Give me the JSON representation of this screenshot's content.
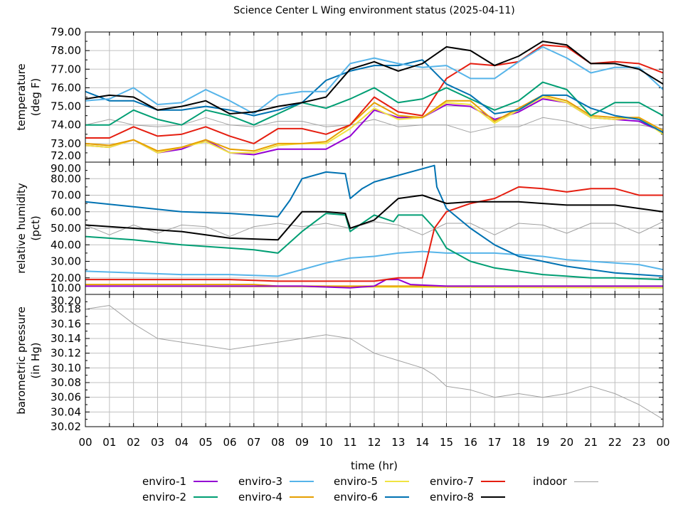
{
  "title": "Science Center L Wing environment status (2025-04-11)",
  "xlabel": "time (hr)",
  "legend": [
    {
      "name": "enviro-1",
      "color": "#9400d3"
    },
    {
      "name": "enviro-2",
      "color": "#009e73"
    },
    {
      "name": "enviro-3",
      "color": "#56b4e9"
    },
    {
      "name": "enviro-4",
      "color": "#e69f00"
    },
    {
      "name": "enviro-5",
      "color": "#f0e442"
    },
    {
      "name": "enviro-6",
      "color": "#0072b2"
    },
    {
      "name": "enviro-7",
      "color": "#e51e10"
    },
    {
      "name": "enviro-8",
      "color": "#000000"
    },
    {
      "name": "indoor",
      "color": "#a0a0a0"
    }
  ],
  "chart_data": [
    {
      "type": "line",
      "ylabel_lines": [
        "temperature",
        "(deg F)"
      ],
      "ylim": [
        72,
        79
      ],
      "yticks": [
        "72.00",
        "73.00",
        "74.00",
        "75.00",
        "76.00",
        "77.00",
        "78.00",
        "79.00"
      ],
      "xlim": [
        0,
        24
      ],
      "xticks": [
        "00",
        "01",
        "02",
        "03",
        "04",
        "05",
        "06",
        "07",
        "08",
        "09",
        "10",
        "11",
        "12",
        "13",
        "14",
        "15",
        "16",
        "17",
        "18",
        "19",
        "20",
        "21",
        "22",
        "23",
        "00"
      ],
      "grid": true,
      "x": [
        0,
        1,
        2,
        3,
        4,
        5,
        6,
        7,
        8,
        9,
        10,
        11,
        12,
        13,
        14,
        15,
        16,
        17,
        18,
        19,
        20,
        21,
        22,
        23,
        24
      ],
      "series": [
        {
          "name": "indoor",
          "values": [
            74.0,
            74.3,
            74.0,
            73.9,
            74.0,
            74.4,
            74.0,
            73.9,
            74.2,
            74.2,
            73.9,
            74.0,
            74.3,
            73.9,
            74.0,
            74.0,
            73.6,
            73.9,
            73.9,
            74.4,
            74.2,
            73.8,
            74.0,
            74.0,
            73.8
          ]
        },
        {
          "name": "enviro-1",
          "values": [
            72.9,
            72.8,
            73.2,
            72.5,
            72.7,
            73.2,
            72.5,
            72.4,
            72.7,
            72.7,
            72.7,
            73.4,
            74.8,
            74.4,
            74.4,
            75.1,
            75.0,
            74.3,
            74.7,
            75.4,
            75.2,
            74.4,
            74.3,
            74.2,
            73.6
          ]
        },
        {
          "name": "enviro-5",
          "values": [
            72.9,
            72.8,
            73.2,
            72.5,
            72.8,
            73.1,
            72.5,
            72.5,
            72.9,
            73.0,
            73.0,
            73.8,
            74.9,
            74.3,
            74.4,
            75.2,
            75.1,
            74.1,
            74.8,
            75.5,
            75.2,
            74.4,
            74.3,
            74.4,
            73.5
          ]
        },
        {
          "name": "enviro-4",
          "values": [
            73.0,
            72.9,
            73.2,
            72.6,
            72.8,
            73.2,
            72.7,
            72.6,
            73.0,
            73.0,
            73.1,
            74.0,
            75.2,
            74.5,
            74.4,
            75.3,
            75.3,
            74.2,
            74.9,
            75.6,
            75.3,
            74.5,
            74.4,
            74.4,
            73.7
          ]
        },
        {
          "name": "enviro-7",
          "values": [
            73.3,
            73.3,
            73.9,
            73.4,
            73.5,
            73.9,
            73.4,
            73.0,
            73.8,
            73.8,
            73.5,
            74.0,
            75.5,
            74.7,
            74.5,
            76.5,
            77.3,
            77.2,
            77.4,
            78.3,
            78.2,
            77.3,
            77.4,
            77.3,
            76.8
          ]
        },
        {
          "name": "enviro-2",
          "values": [
            74.0,
            74.0,
            74.8,
            74.3,
            74.0,
            74.8,
            74.5,
            74.0,
            74.6,
            75.2,
            74.9,
            75.4,
            76.0,
            75.2,
            75.4,
            76.0,
            75.4,
            74.8,
            75.3,
            76.3,
            75.9,
            74.5,
            75.2,
            75.2,
            74.5
          ]
        },
        {
          "name": "enviro-6",
          "values": [
            75.8,
            75.3,
            75.3,
            74.8,
            74.8,
            75.0,
            74.8,
            74.5,
            74.8,
            75.2,
            76.4,
            76.9,
            77.2,
            77.2,
            77.5,
            76.2,
            75.6,
            74.6,
            74.8,
            75.6,
            75.6,
            74.9,
            74.5,
            74.3,
            73.6
          ]
        },
        {
          "name": "enviro-3",
          "values": [
            75.3,
            75.4,
            76.0,
            75.1,
            75.2,
            75.9,
            75.3,
            74.6,
            75.6,
            75.8,
            75.8,
            77.3,
            77.6,
            77.3,
            77.1,
            77.2,
            76.5,
            76.5,
            77.4,
            78.2,
            77.6,
            76.8,
            77.1,
            77.1,
            75.9
          ]
        },
        {
          "name": "enviro-8",
          "values": [
            75.4,
            75.6,
            75.5,
            74.8,
            75.0,
            75.3,
            74.6,
            74.7,
            75.0,
            75.2,
            75.5,
            77.0,
            77.4,
            76.9,
            77.3,
            78.2,
            78.0,
            77.2,
            77.7,
            78.5,
            78.3,
            77.3,
            77.3,
            77.0,
            76.2
          ]
        }
      ]
    },
    {
      "type": "line",
      "ylabel_lines": [
        "relative humidity",
        "(pct)"
      ],
      "ylim": [
        10,
        90
      ],
      "yticks": [
        "10.00",
        "20.00",
        "30.00",
        "40.00",
        "50.00",
        "60.00",
        "70.00",
        "80.00",
        "90.00"
      ],
      "xlim": [
        0,
        24
      ],
      "grid": true,
      "series": [
        {
          "name": "indoor",
          "points": [
            [
              0,
              52
            ],
            [
              1,
              46
            ],
            [
              2,
              52
            ],
            [
              3,
              47
            ],
            [
              4,
              52
            ],
            [
              5,
              51
            ],
            [
              6,
              45
            ],
            [
              7,
              51
            ],
            [
              8,
              53
            ],
            [
              9,
              51
            ],
            [
              10,
              53
            ],
            [
              11,
              50
            ],
            [
              12,
              54
            ],
            [
              13,
              52
            ],
            [
              14,
              46
            ],
            [
              15,
              53
            ],
            [
              16,
              53
            ],
            [
              17,
              46
            ],
            [
              18,
              53
            ],
            [
              19,
              52
            ],
            [
              20,
              47
            ],
            [
              21,
              53
            ],
            [
              22,
              53
            ],
            [
              23,
              47
            ],
            [
              24,
              54
            ]
          ]
        },
        {
          "name": "enviro-5",
          "points": [
            [
              0,
              15
            ],
            [
              24,
              14
            ]
          ]
        },
        {
          "name": "enviro-4",
          "points": [
            [
              0,
              16
            ],
            [
              7,
              16
            ],
            [
              8,
              15
            ],
            [
              24,
              15
            ]
          ]
        },
        {
          "name": "enviro-1",
          "points": [
            [
              0,
              15
            ],
            [
              9,
              15
            ],
            [
              11,
              14
            ],
            [
              12,
              15
            ],
            [
              12.5,
              19
            ],
            [
              13,
              19
            ],
            [
              13.5,
              16
            ],
            [
              15,
              15
            ],
            [
              24,
              15
            ]
          ]
        },
        {
          "name": "enviro-3",
          "points": [
            [
              0,
              24
            ],
            [
              2,
              23
            ],
            [
              4,
              22
            ],
            [
              6,
              22
            ],
            [
              8,
              21
            ],
            [
              9,
              25
            ],
            [
              10,
              29
            ],
            [
              11,
              32
            ],
            [
              12,
              33
            ],
            [
              13,
              35
            ],
            [
              14,
              36
            ],
            [
              15,
              35
            ],
            [
              16,
              35
            ],
            [
              17,
              35
            ],
            [
              18,
              34
            ],
            [
              19,
              33
            ],
            [
              20,
              31
            ],
            [
              21,
              30
            ],
            [
              22,
              29
            ],
            [
              23,
              28
            ],
            [
              24,
              25
            ]
          ]
        },
        {
          "name": "enviro-2",
          "points": [
            [
              0,
              45
            ],
            [
              2,
              43
            ],
            [
              4,
              40
            ],
            [
              6,
              38
            ],
            [
              7,
              37
            ],
            [
              8,
              35
            ],
            [
              9,
              48
            ],
            [
              10,
              59
            ],
            [
              10.8,
              58
            ],
            [
              11,
              48
            ],
            [
              12,
              58
            ],
            [
              12.8,
              54
            ],
            [
              13,
              58
            ],
            [
              14,
              58
            ],
            [
              14.5,
              50
            ],
            [
              15,
              38
            ],
            [
              16,
              30
            ],
            [
              17,
              26
            ],
            [
              18,
              24
            ],
            [
              19,
              22
            ],
            [
              20,
              21
            ],
            [
              21,
              20
            ],
            [
              22,
              20
            ],
            [
              24,
              19
            ]
          ]
        },
        {
          "name": "enviro-7",
          "points": [
            [
              0,
              19
            ],
            [
              2,
              19
            ],
            [
              4,
              19
            ],
            [
              6,
              19
            ],
            [
              8,
              18
            ],
            [
              10,
              18
            ],
            [
              12,
              18
            ],
            [
              13,
              20
            ],
            [
              14,
              20
            ],
            [
              14.5,
              50
            ],
            [
              15,
              60
            ],
            [
              16,
              65
            ],
            [
              17,
              68
            ],
            [
              18,
              75
            ],
            [
              19,
              74
            ],
            [
              20,
              72
            ],
            [
              21,
              74
            ],
            [
              22,
              74
            ],
            [
              23,
              70
            ],
            [
              24,
              70
            ]
          ]
        },
        {
          "name": "enviro-6",
          "points": [
            [
              0,
              66
            ],
            [
              2,
              63
            ],
            [
              4,
              60
            ],
            [
              6,
              59
            ],
            [
              8,
              57
            ],
            [
              8.5,
              67
            ],
            [
              9,
              80
            ],
            [
              10,
              84
            ],
            [
              10.8,
              83
            ],
            [
              11,
              68
            ],
            [
              11.5,
              74
            ],
            [
              12,
              78
            ],
            [
              13,
              82
            ],
            [
              14,
              86
            ],
            [
              14.5,
              88
            ],
            [
              14.6,
              75
            ],
            [
              15,
              62
            ],
            [
              16,
              50
            ],
            [
              17,
              40
            ],
            [
              18,
              33
            ],
            [
              19,
              30
            ],
            [
              20,
              27
            ],
            [
              21,
              25
            ],
            [
              22,
              23
            ],
            [
              24,
              21
            ]
          ]
        },
        {
          "name": "enviro-8",
          "points": [
            [
              0,
              52
            ],
            [
              2,
              50
            ],
            [
              4,
              48
            ],
            [
              6,
              44
            ],
            [
              8,
              43
            ],
            [
              9,
              60
            ],
            [
              10,
              60
            ],
            [
              10.8,
              59
            ],
            [
              11,
              50
            ],
            [
              12,
              55
            ],
            [
              13,
              68
            ],
            [
              14,
              70
            ],
            [
              15,
              65
            ],
            [
              16,
              66
            ],
            [
              17,
              66
            ],
            [
              18,
              66
            ],
            [
              19,
              65
            ],
            [
              20,
              64
            ],
            [
              21,
              64
            ],
            [
              22,
              64
            ],
            [
              23,
              62
            ],
            [
              24,
              60
            ]
          ]
        }
      ]
    },
    {
      "type": "line",
      "ylabel_lines": [
        "barometric pressure",
        "(in Hg)"
      ],
      "ylim": [
        30.02,
        30.2
      ],
      "yticks": [
        "30.02",
        "30.04",
        "30.06",
        "30.08",
        "30.10",
        "30.12",
        "30.14",
        "30.16",
        "30.18",
        "30.20"
      ],
      "xlim": [
        0,
        24
      ],
      "grid": true,
      "series": [
        {
          "name": "indoor",
          "points": [
            [
              0,
              30.18
            ],
            [
              1,
              30.185
            ],
            [
              2,
              30.16
            ],
            [
              3,
              30.14
            ],
            [
              4,
              30.135
            ],
            [
              5,
              30.13
            ],
            [
              6,
              30.125
            ],
            [
              7,
              30.13
            ],
            [
              8,
              30.135
            ],
            [
              9,
              30.14
            ],
            [
              10,
              30.145
            ],
            [
              11,
              30.14
            ],
            [
              12,
              30.12
            ],
            [
              13,
              30.11
            ],
            [
              14,
              30.1
            ],
            [
              14.5,
              30.09
            ],
            [
              15,
              30.075
            ],
            [
              16,
              30.07
            ],
            [
              17,
              30.06
            ],
            [
              18,
              30.065
            ],
            [
              19,
              30.06
            ],
            [
              20,
              30.065
            ],
            [
              21,
              30.075
            ],
            [
              22,
              30.065
            ],
            [
              23,
              30.05
            ],
            [
              24,
              30.03
            ]
          ]
        }
      ]
    }
  ]
}
